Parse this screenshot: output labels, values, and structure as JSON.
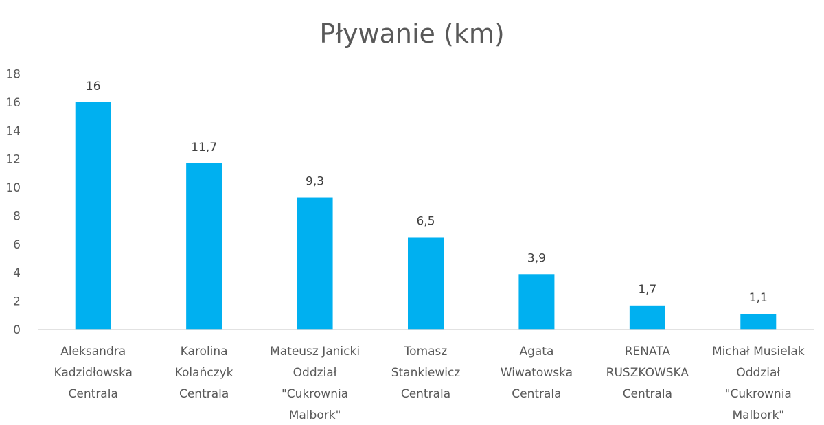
{
  "chart_data": {
    "type": "bar",
    "title": "Pływanie (km)",
    "xlabel": "",
    "ylabel": "",
    "ylim": [
      0,
      18
    ],
    "yticks": [
      0,
      2,
      4,
      6,
      8,
      10,
      12,
      14,
      16,
      18
    ],
    "grid": false,
    "legend": "none",
    "bar_color": "#00b0f0",
    "categories": [
      [
        "Aleksandra",
        "Kadzidłowska",
        "Centrala"
      ],
      [
        "Karolina",
        "Kolańczyk",
        "Centrala"
      ],
      [
        "Mateusz Janicki",
        "Oddział",
        "\"Cukrownia",
        "Malbork\""
      ],
      [
        "Tomasz",
        "Stankiewicz",
        "Centrala"
      ],
      [
        "Agata",
        "Wiwatowska",
        "Centrala"
      ],
      [
        "RENATA",
        "RUSZKOWSKA",
        "Centrala"
      ],
      [
        "Michał Musielak",
        "Oddział",
        "\"Cukrownia",
        "Malbork\""
      ]
    ],
    "values": [
      16,
      11.7,
      9.3,
      6.5,
      3.9,
      1.7,
      1.1
    ],
    "data_labels": [
      "16",
      "11,7",
      "9,3",
      "6,5",
      "3,9",
      "1,7",
      "1,1"
    ]
  }
}
